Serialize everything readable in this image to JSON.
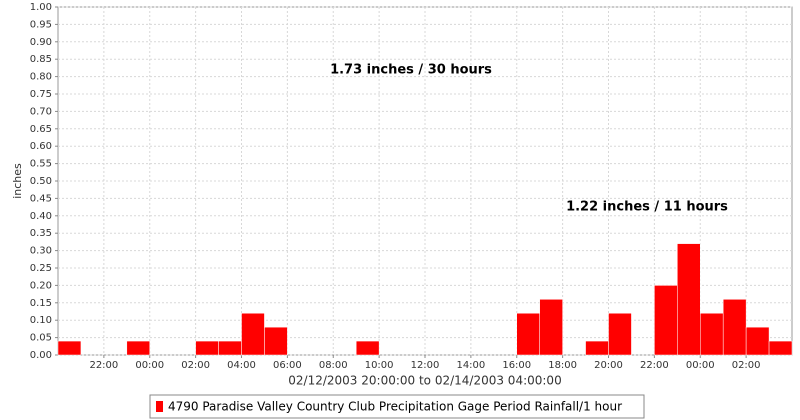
{
  "chart_data": {
    "type": "bar",
    "y_label": "inches",
    "x_label": "02/12/2003 20:00:00 to 02/14/2003 04:00:00",
    "annotations": [
      "1.73 inches / 30 hours",
      "1.22 inches / 11 hours"
    ],
    "categories": [
      null,
      null,
      "22:00",
      null,
      "00:00",
      null,
      "02:00",
      null,
      "04:00",
      null,
      "06:00",
      null,
      "08:00",
      null,
      "10:00",
      null,
      "12:00",
      null,
      "14:00",
      null,
      "16:00",
      null,
      "18:00",
      null,
      "20:00",
      null,
      "22:00",
      null,
      "00:00",
      null,
      "02:00",
      null
    ],
    "series": [
      {
        "name": "4790 Paradise Valley Country Club Precipitation Gage Period Rainfall/1 hour",
        "color": "#ff0000",
        "values": [
          0.04,
          0,
          0,
          0.04,
          0,
          0,
          0.04,
          0.04,
          0.12,
          0.08,
          0,
          0,
          0,
          0.04,
          0,
          0,
          0,
          0,
          0,
          0,
          0.12,
          0.16,
          0,
          0.04,
          0.12,
          0,
          0.2,
          0.32,
          0.12,
          0.16,
          0.08,
          0.04
        ]
      }
    ],
    "ylim": [
      0,
      1
    ],
    "yticks": [
      {
        "value": 0,
        "label": "0.00"
      },
      {
        "value": 0.05,
        "label": "0.05"
      },
      {
        "value": 0.1,
        "label": "0.10"
      },
      {
        "value": 0.15,
        "label": "0.15"
      },
      {
        "value": 0.2,
        "label": "0.20"
      },
      {
        "value": 0.25,
        "label": "0.25"
      },
      {
        "value": 0.3,
        "label": "0.30"
      },
      {
        "value": 0.35,
        "label": "0.35"
      },
      {
        "value": 0.4,
        "label": "0.40"
      },
      {
        "value": 0.45,
        "label": "0.45"
      },
      {
        "value": 0.5,
        "label": "0.50"
      },
      {
        "value": 0.55,
        "label": "0.55"
      },
      {
        "value": 0.6,
        "label": "0.60"
      },
      {
        "value": 0.65,
        "label": "0.65"
      },
      {
        "value": 0.7,
        "label": "0.70"
      },
      {
        "value": 0.75,
        "label": "0.75"
      },
      {
        "value": 0.8,
        "label": "0.80"
      },
      {
        "value": 0.85,
        "label": "0.85"
      },
      {
        "value": 0.9,
        "label": "0.90"
      },
      {
        "value": 0.95,
        "label": "0.95"
      },
      {
        "value": 1,
        "label": "1.00"
      }
    ],
    "grid": true
  }
}
